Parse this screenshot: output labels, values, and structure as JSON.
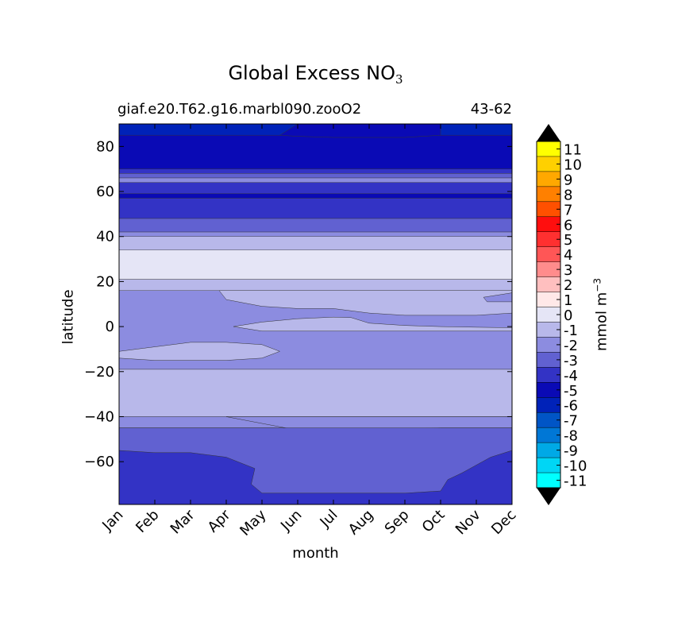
{
  "page": {
    "title_main": "Global Excess NO",
    "title_sub": "3"
  },
  "subtitle": {
    "case": "giaf.e20.T62.g16.marbl090.zooO2",
    "years": "43-62"
  },
  "chart_data": {
    "type": "contour",
    "title": "Global Excess NO3",
    "xlabel": "month",
    "ylabel": "latitude",
    "colorbar_label": "mmol m",
    "colorbar_label_exp": "−3",
    "x_categories": [
      "Jan",
      "Feb",
      "Mar",
      "Apr",
      "May",
      "Jun",
      "Jul",
      "Aug",
      "Sep",
      "Oct",
      "Nov",
      "Dec"
    ],
    "xlim": [
      0,
      11
    ],
    "ylim": [
      -79,
      90
    ],
    "y_ticks": [
      80,
      60,
      40,
      20,
      0,
      -20,
      -40,
      -60
    ],
    "y_tick_labels": [
      "80",
      "60",
      "40",
      "20",
      "0",
      "−20",
      "−40",
      "−60"
    ],
    "levels": [
      -11,
      -10,
      -9,
      -8,
      -7,
      -6,
      -5,
      -4,
      -3,
      -2,
      -1,
      0,
      1,
      2,
      3,
      4,
      5,
      6,
      7,
      8,
      9,
      10,
      11
    ],
    "level_labels": [
      "11",
      "10",
      "9",
      "8",
      "7",
      "6",
      "5",
      "4",
      "3",
      "2",
      "1",
      "0",
      "-1",
      "-2",
      "-3",
      "-4",
      "-5",
      "-6",
      "-7",
      "-8",
      "-9",
      "-10",
      "-11"
    ],
    "level_colors": [
      "#00ffff",
      "#00d6f5",
      "#00a9e6",
      "#0077d6",
      "#0055c6",
      "#0022b8",
      "#0a0ab5",
      "#3333c5",
      "#6161d1",
      "#8c8ce0",
      "#b8b8ea",
      "#e5e5f6",
      "#ffe8e8",
      "#ffbfbf",
      "#ff8c8c",
      "#ff5656",
      "#ff3030",
      "#ff0e0e",
      "#ff5000",
      "#ff8000",
      "#ffa800",
      "#ffd000",
      "#ffff00"
    ],
    "colorbar_extend": "both",
    "bands": [
      {
        "lat_max": 90,
        "lat_min": 85,
        "level": -6
      },
      {
        "lat_max": 85,
        "lat_min": 70,
        "level": -5
      },
      {
        "lat_max": 70,
        "lat_min": 68,
        "level": -4
      },
      {
        "lat_max": 68,
        "lat_min": 66,
        "level": -3
      },
      {
        "lat_max": 66,
        "lat_min": 64,
        "level": -2
      },
      {
        "lat_max": 64,
        "lat_min": 59,
        "level": -4
      },
      {
        "lat_max": 59,
        "lat_min": 57,
        "level": -5
      },
      {
        "lat_max": 57,
        "lat_min": 48,
        "level": -4
      },
      {
        "lat_max": 48,
        "lat_min": 42,
        "level": -3
      },
      {
        "lat_max": 42,
        "lat_min": 40,
        "level": -2
      },
      {
        "lat_max": 40,
        "lat_min": 34,
        "level": -1
      },
      {
        "lat_max": 34,
        "lat_min": 21,
        "level": 0
      },
      {
        "lat_max": 21,
        "lat_min": 16,
        "level": -1
      },
      {
        "lat_max": 16,
        "lat_min": -19,
        "level": -2
      },
      {
        "lat_max": -19,
        "lat_min": -40,
        "level": -1
      },
      {
        "lat_max": -40,
        "lat_min": -45,
        "level": -2
      },
      {
        "lat_max": -45,
        "lat_min": -55,
        "level": -3
      },
      {
        "lat_max": -55,
        "lat_min": -79,
        "level": -4
      }
    ],
    "features": [
      {
        "kind": "region",
        "level": -1,
        "desc": "equatorial minimum pocket Jun-Dec",
        "pts": [
          [
            3.2,
            0
          ],
          [
            4,
            2
          ],
          [
            5,
            3.5
          ],
          [
            6,
            4.2
          ],
          [
            6.5,
            4
          ],
          [
            7,
            1.5
          ],
          [
            8,
            0.5
          ],
          [
            9,
            0
          ],
          [
            10,
            -0.3
          ],
          [
            11,
            -0.5
          ],
          [
            11,
            -2
          ],
          [
            9,
            -2
          ],
          [
            8,
            -2
          ],
          [
            7,
            -2
          ],
          [
            6,
            -2
          ],
          [
            5,
            -2
          ],
          [
            4,
            -2
          ]
        ]
      },
      {
        "kind": "region",
        "level": -1,
        "desc": "subtropical N widening",
        "pts": [
          [
            2.8,
            16
          ],
          [
            3,
            12
          ],
          [
            4,
            9
          ],
          [
            5,
            8
          ],
          [
            6,
            8
          ],
          [
            7,
            6
          ],
          [
            8,
            5
          ],
          [
            9,
            5
          ],
          [
            10,
            5
          ],
          [
            11,
            6
          ],
          [
            11,
            16
          ]
        ]
      },
      {
        "kind": "region",
        "level": -2,
        "desc": "tongue Nov-Dec",
        "pts": [
          [
            10.2,
            13
          ],
          [
            11,
            15
          ],
          [
            11,
            11
          ],
          [
            10.3,
            11
          ]
        ]
      },
      {
        "kind": "region",
        "level": -1,
        "desc": "southern tropics patch Jan-May",
        "pts": [
          [
            0,
            -11
          ],
          [
            1,
            -9
          ],
          [
            2,
            -7
          ],
          [
            3,
            -7
          ],
          [
            4,
            -8
          ],
          [
            4.5,
            -11
          ],
          [
            4,
            -14
          ],
          [
            3,
            -15
          ],
          [
            2,
            -15
          ],
          [
            1,
            -15
          ],
          [
            0,
            -14
          ]
        ]
      },
      {
        "kind": "region",
        "level": -2,
        "desc": "mid southern lat bulge",
        "pts": [
          [
            3,
            -40
          ],
          [
            5,
            -46
          ],
          [
            7,
            -46
          ],
          [
            9,
            -45
          ],
          [
            11,
            -45
          ],
          [
            11,
            -40
          ]
        ]
      },
      {
        "kind": "region",
        "level": -3,
        "desc": "southern ocean middle",
        "pts": [
          [
            0,
            -55
          ],
          [
            1,
            -56
          ],
          [
            2,
            -56
          ],
          [
            3,
            -58
          ],
          [
            3.8,
            -63
          ],
          [
            3.7,
            -70
          ],
          [
            4,
            -74
          ],
          [
            5,
            -74
          ],
          [
            8,
            -74
          ],
          [
            9,
            -73
          ],
          [
            9.2,
            -68
          ],
          [
            9.6,
            -65
          ],
          [
            10.4,
            -58
          ],
          [
            11,
            -55
          ],
          [
            11,
            -45
          ],
          [
            0,
            -45
          ]
        ]
      },
      {
        "kind": "region",
        "level": -5,
        "desc": "high lat N shift",
        "pts": [
          [
            4.5,
            85
          ],
          [
            5,
            90
          ],
          [
            9,
            90
          ],
          [
            9,
            85
          ],
          [
            8,
            84
          ],
          [
            6,
            84
          ],
          [
            5,
            84.5
          ]
        ]
      }
    ]
  }
}
